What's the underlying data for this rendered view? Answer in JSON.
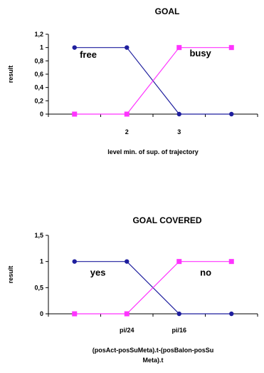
{
  "chart_data": [
    {
      "type": "line",
      "title": "GOAL",
      "ylabel": "result",
      "xlabel": "level min. of sup. of trajectory",
      "ylim": [
        0,
        1.2
      ],
      "yticks": [
        "0",
        "0,2",
        "0,4",
        "0,6",
        "0,8",
        "1",
        "1,2"
      ],
      "categories": [
        "",
        "2",
        "3",
        ""
      ],
      "series": [
        {
          "marker": "circle",
          "color": "#1f1f9e",
          "values": [
            1,
            1,
            0,
            0
          ]
        },
        {
          "marker": "square",
          "color": "#ff33ff",
          "values": [
            0,
            0,
            1,
            1
          ]
        }
      ],
      "annotations": [
        {
          "text": "free",
          "x": 0.1,
          "y": 0.9
        },
        {
          "text": "busy",
          "x": 2.2,
          "y": 0.92
        }
      ]
    },
    {
      "type": "line",
      "title": "GOAL COVERED",
      "ylabel": "result",
      "xlabel": "(posAct-posSuMeta).t-(posBalon-posSuMeta).t",
      "ylim": [
        0,
        1.5
      ],
      "yticks": [
        "0",
        "0,5",
        "1",
        "1,5"
      ],
      "categories": [
        "",
        "pi/24",
        "pi/16",
        ""
      ],
      "series": [
        {
          "marker": "circle",
          "color": "#1f1f9e",
          "values": [
            1,
            1,
            0,
            0
          ]
        },
        {
          "marker": "square",
          "color": "#ff33ff",
          "values": [
            0,
            0,
            1,
            1
          ]
        }
      ],
      "annotations": [
        {
          "text": "yes",
          "x": 0.3,
          "y": 0.8
        },
        {
          "text": "no",
          "x": 2.4,
          "y": 0.8
        }
      ]
    }
  ]
}
